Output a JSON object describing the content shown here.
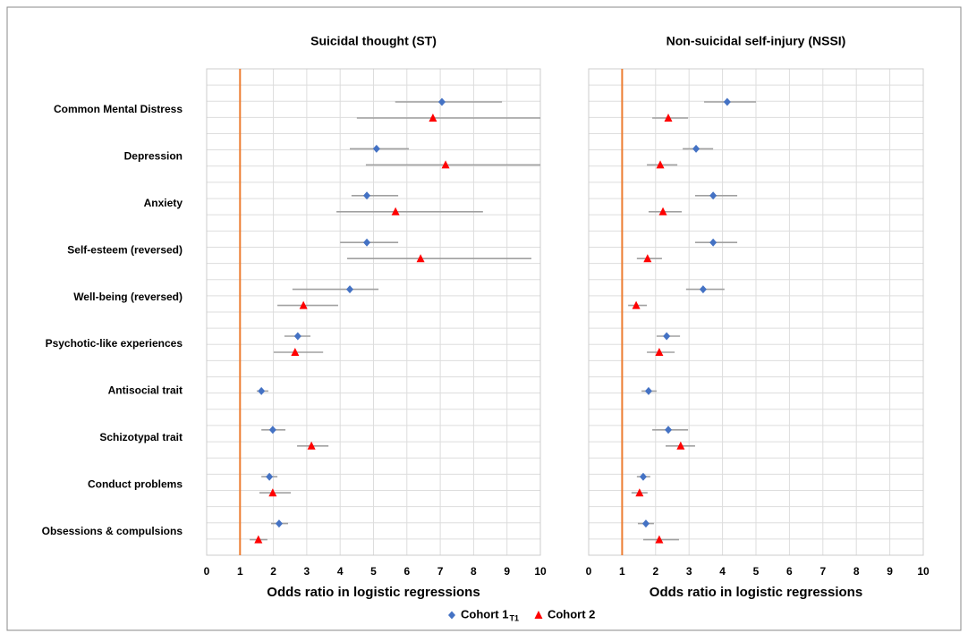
{
  "chart_data": [
    {
      "type": "forest",
      "title": "Suicidal thought (ST)",
      "x_label": "Odds ratio in logistic regressions",
      "categories": [
        "Common Mental Distress",
        "Depression",
        "Anxiety",
        "Self-esteem (reversed)",
        "Well-being (reversed)",
        "Psychotic-like experiences",
        "Antisocial trait",
        "Schizotypal trait",
        "Conduct problems",
        "Obsessions & compulsions"
      ],
      "xlim": [
        0,
        10
      ],
      "xticks": [
        0,
        1,
        2,
        3,
        4,
        5,
        6,
        7,
        8,
        9,
        10
      ],
      "reference_line": 1,
      "reference_color": "#ed7d31",
      "grid": true,
      "series": [
        {
          "name": "Cohort 1",
          "name_subscript": "T1",
          "color": "#4472c4",
          "marker": "diamond",
          "values": [
            7.05,
            5.09,
            4.8,
            4.8,
            4.29,
            2.73,
            1.64,
            1.98,
            1.88,
            2.17
          ],
          "lower": [
            5.65,
            4.29,
            4.34,
            4.0,
            2.57,
            2.33,
            1.5,
            1.64,
            1.64,
            1.93
          ],
          "upper": [
            8.85,
            6.06,
            5.74,
            5.74,
            5.15,
            3.11,
            1.85,
            2.36,
            2.12,
            2.44
          ]
        },
        {
          "name": "Cohort 2",
          "color": "#ff0000",
          "marker": "triangle",
          "values": [
            6.78,
            7.16,
            5.66,
            6.41,
            2.9,
            2.65,
            null,
            3.14,
            1.98,
            1.55
          ],
          "lower": [
            4.5,
            4.77,
            3.89,
            4.21,
            2.12,
            2.01,
            null,
            2.71,
            1.58,
            1.29
          ],
          "upper": [
            10,
            10,
            8.28,
            9.73,
            3.94,
            3.49,
            null,
            3.65,
            2.52,
            1.82
          ]
        }
      ]
    },
    {
      "type": "forest",
      "title": "Non-suicidal self-injury (NSSI)",
      "x_label": "Odds ratio in logistic regressions",
      "xlim": [
        0,
        10
      ],
      "xticks": [
        0,
        1,
        2,
        3,
        4,
        5,
        6,
        7,
        8,
        9,
        10
      ],
      "reference_line": 1,
      "reference_color": "#ed7d31",
      "grid": true,
      "series": [
        {
          "color": "#4472c4",
          "marker": "diamond",
          "values": [
            4.14,
            3.21,
            3.72,
            3.72,
            3.42,
            2.33,
            1.79,
            2.38,
            1.63,
            1.71
          ],
          "lower": [
            3.45,
            2.81,
            3.18,
            3.18,
            2.91,
            2.03,
            1.58,
            1.9,
            1.44,
            1.47
          ],
          "upper": [
            5.0,
            3.72,
            4.44,
            4.44,
            4.06,
            2.73,
            2.03,
            2.97,
            1.84,
            1.95
          ]
        },
        {
          "color": "#ff0000",
          "marker": "triangle",
          "values": [
            2.38,
            2.14,
            2.22,
            1.76,
            1.42,
            2.11,
            null,
            2.75,
            1.52,
            2.11
          ],
          "lower": [
            1.9,
            1.74,
            1.79,
            1.44,
            1.18,
            1.74,
            null,
            2.3,
            1.28,
            1.63
          ],
          "upper": [
            2.97,
            2.65,
            2.78,
            2.19,
            1.74,
            2.57,
            null,
            3.18,
            1.76,
            2.7
          ]
        }
      ]
    }
  ]
}
